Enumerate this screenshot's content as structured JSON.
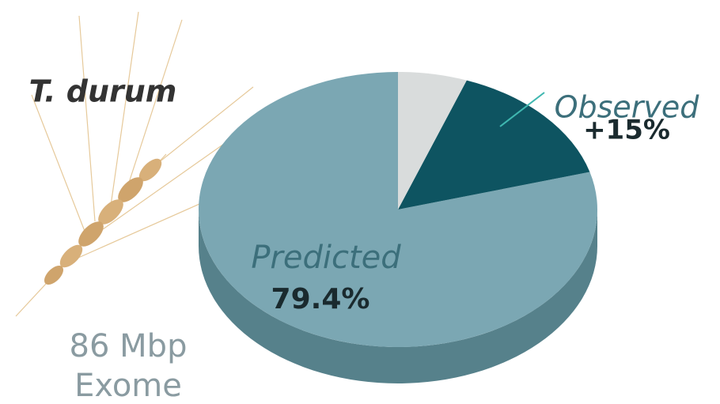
{
  "chart_data": {
    "type": "pie3d",
    "title": "T. durum",
    "caption": [
      "86 Mbp",
      "Exome"
    ],
    "categories": [
      "Predicted",
      "Observed",
      null
    ],
    "values": [
      79.4,
      15,
      5.6
    ],
    "value_labels": [
      "79.4%",
      "+15%",
      null
    ],
    "colors": [
      "#7ba7b3",
      "#0e5461",
      "#d9dcdc"
    ],
    "side_color": "#56818b"
  }
}
